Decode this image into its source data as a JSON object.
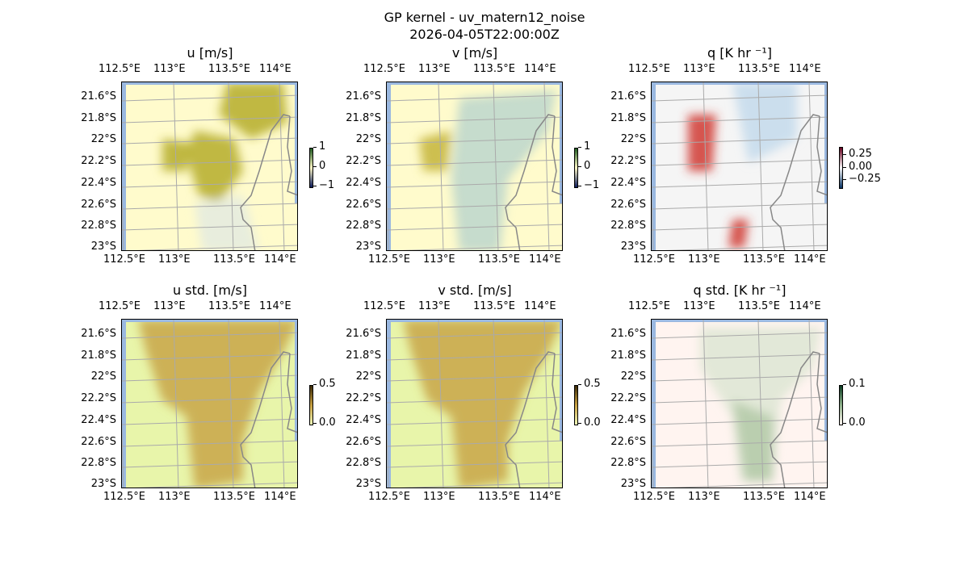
{
  "figure": {
    "title": "GP kernel - uv_matern12_noise",
    "timestamp": "2026-04-05T22:00:00Z"
  },
  "x_ticks": [
    "112.5°E",
    "113°E",
    "113.5°E",
    "114°E"
  ],
  "y_ticks": [
    "21.6°S",
    "21.8°S",
    "22°S",
    "22.2°S",
    "22.4°S",
    "22.6°S",
    "22.8°S",
    "23°S"
  ],
  "panels": [
    {
      "title": "u [m/s]",
      "cbar_ticks": [
        "1",
        "0",
        "−1"
      ],
      "cbar_colors": [
        "#1f5a20",
        "#fff9c8",
        "#0b1a5a"
      ],
      "base": "#fffbcc",
      "blob": "#b5ad2c",
      "blob2": "#e4ebe0"
    },
    {
      "title": "v [m/s]",
      "cbar_ticks": [
        "1",
        "0",
        "−1"
      ],
      "cbar_colors": [
        "#1f5a20",
        "#fff9c8",
        "#0b1a5a"
      ],
      "base": "#fffbcc",
      "blob": "#c4b43a",
      "blob2": "#bcd6cc"
    },
    {
      "title": "q [K hr ⁻¹]",
      "cbar_ticks": [
        "0.25",
        "0.00",
        "−0.25"
      ],
      "cbar_colors": [
        "#67001f",
        "#f7f7f7",
        "#053061"
      ],
      "base": "#f5f5f5",
      "blob": "#d03a32",
      "blob2": "#c4daec"
    },
    {
      "title": "u std. [m/s]",
      "cbar_ticks": [
        "0.5",
        "0.0"
      ],
      "cbar_colors": [
        "#3a2a08",
        "#c8a040",
        "#f0f8b8"
      ],
      "base": "#e8f5aa",
      "blob": "#c8a648",
      "blob2": "#c8a648"
    },
    {
      "title": "v std. [m/s]",
      "cbar_ticks": [
        "0.5",
        "0.0"
      ],
      "cbar_colors": [
        "#3a2a08",
        "#c8a040",
        "#f0f8b8"
      ],
      "base": "#e8f5aa",
      "blob": "#c8a648",
      "blob2": "#c8a648"
    },
    {
      "title": "q std. [K hr ⁻¹]",
      "cbar_ticks": [
        "0.1",
        "0.0"
      ],
      "cbar_colors": [
        "#0a3a20",
        "#8eb08a",
        "#fff5f0"
      ],
      "base": "#fff4f0",
      "blob": "#b4caa8",
      "blob2": "#dde6d4"
    }
  ]
}
